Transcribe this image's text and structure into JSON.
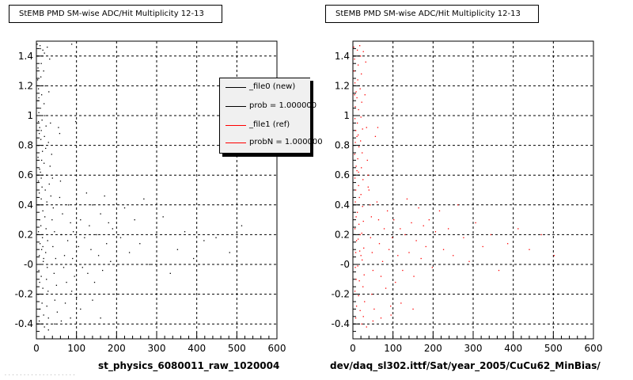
{
  "panels": [
    {
      "title": "StEMB PMD SM-wise ADC/Hit Multiplicity 12-13",
      "x_footer": "st_physics_6080011_raw_1020004",
      "color": "#000000"
    },
    {
      "title": "StEMB PMD SM-wise ADC/Hit Multiplicity 12-13",
      "x_footer": "dev/daq_sl302.ittf/Sat/year_2005/CuCu62_MinBias/",
      "color": "#ff0000"
    }
  ],
  "legend": {
    "entries": [
      {
        "label": "_file0 (new)",
        "color": "#000000"
      },
      {
        "label": "prob = 1.000000",
        "color": "#000000"
      },
      {
        "label": "_file1 (ref)",
        "color": "#ff0000"
      },
      {
        "label": "probN = 1.000000",
        "color": "#ff0000"
      }
    ]
  },
  "chart_data": [
    {
      "type": "scatter",
      "title": "StEMB PMD SM-wise ADC/Hit Multiplicity 12-13",
      "xlabel": "st_physics_6080011_raw_1020004",
      "ylabel": "",
      "xlim": [
        0,
        600
      ],
      "ylim": [
        -0.5,
        1.5
      ],
      "xticks": [
        "0",
        "100",
        "200",
        "300",
        "400",
        "500",
        "600"
      ],
      "yticks": [
        "-0.4",
        "-0.2",
        "-0",
        "0.2",
        "0.4",
        "0.6",
        "0.8",
        "1",
        "1.2",
        "1.4"
      ],
      "grid": true,
      "marker_color": "#000000",
      "points": [
        [
          2,
          1.48
        ],
        [
          3,
          1.4
        ],
        [
          4,
          1.32
        ],
        [
          3,
          1.24
        ],
        [
          5,
          1.18
        ],
        [
          4,
          1.1
        ],
        [
          6,
          1.02
        ],
        [
          5,
          0.96
        ],
        [
          7,
          0.88
        ],
        [
          6,
          0.8
        ],
        [
          4,
          0.72
        ],
        [
          8,
          0.64
        ],
        [
          5,
          0.56
        ],
        [
          7,
          0.48
        ],
        [
          6,
          0.4
        ],
        [
          8,
          0.3
        ],
        [
          5,
          0.22
        ],
        [
          9,
          0.14
        ],
        [
          7,
          0.06
        ],
        [
          6,
          -0.04
        ],
        [
          8,
          -0.12
        ],
        [
          5,
          -0.2
        ],
        [
          9,
          -0.3
        ],
        [
          7,
          -0.38
        ],
        [
          10,
          1.45
        ],
        [
          12,
          1.35
        ],
        [
          11,
          1.26
        ],
        [
          13,
          1.14
        ],
        [
          10,
          1.05
        ],
        [
          14,
          0.97
        ],
        [
          12,
          0.9
        ],
        [
          11,
          0.84
        ],
        [
          15,
          0.76
        ],
        [
          13,
          0.7
        ],
        [
          10,
          0.62
        ],
        [
          14,
          0.52
        ],
        [
          12,
          0.44
        ],
        [
          16,
          0.36
        ],
        [
          11,
          0.26
        ],
        [
          15,
          0.18
        ],
        [
          13,
          0.1
        ],
        [
          17,
          0.02
        ],
        [
          12,
          -0.08
        ],
        [
          16,
          -0.16
        ],
        [
          14,
          -0.26
        ],
        [
          18,
          -0.34
        ],
        [
          20,
          1.42
        ],
        [
          18,
          1.3
        ],
        [
          22,
          1.2
        ],
        [
          19,
          1.08
        ],
        [
          21,
          1.0
        ],
        [
          24,
          0.93
        ],
        [
          20,
          0.86
        ],
        [
          23,
          0.78
        ],
        [
          19,
          0.68
        ],
        [
          25,
          0.6
        ],
        [
          22,
          0.5
        ],
        [
          26,
          0.42
        ],
        [
          21,
          0.32
        ],
        [
          24,
          0.24
        ],
        [
          28,
          0.16
        ],
        [
          23,
          0.08
        ],
        [
          27,
          -0.02
        ],
        [
          25,
          -0.1
        ],
        [
          29,
          -0.18
        ],
        [
          26,
          -0.28
        ],
        [
          30,
          -0.36
        ],
        [
          9,
          1.47
        ],
        [
          16,
          1.44
        ],
        [
          27,
          1.46
        ],
        [
          33,
          1.38
        ],
        [
          31,
          1.16
        ],
        [
          35,
          0.95
        ],
        [
          30,
          0.82
        ],
        [
          38,
          0.74
        ],
        [
          34,
          0.66
        ],
        [
          40,
          0.58
        ],
        [
          36,
          0.46
        ],
        [
          42,
          0.38
        ],
        [
          39,
          0.3
        ],
        [
          45,
          0.22
        ],
        [
          41,
          0.12
        ],
        [
          48,
          0.04
        ],
        [
          44,
          -0.06
        ],
        [
          50,
          -0.14
        ],
        [
          46,
          -0.24
        ],
        [
          52,
          -0.32
        ],
        [
          55,
          0.92
        ],
        [
          60,
          0.56
        ],
        [
          58,
          0.45
        ],
        [
          65,
          0.34
        ],
        [
          62,
          0.2
        ],
        [
          70,
          0.06
        ],
        [
          68,
          -0.02
        ],
        [
          75,
          -0.12
        ],
        [
          72,
          -0.26
        ],
        [
          80,
          0.4
        ],
        [
          85,
          0.28
        ],
        [
          78,
          0.16
        ],
        [
          90,
          0.04
        ],
        [
          88,
          -0.18
        ],
        [
          95,
          -0.08
        ],
        [
          92,
          0.22
        ],
        [
          98,
          0.96
        ],
        [
          100,
          -0.22
        ],
        [
          105,
          0.12
        ],
        [
          110,
          0.3
        ],
        [
          115,
          -0.02
        ],
        [
          120,
          0.18
        ],
        [
          125,
          0.48
        ],
        [
          128,
          -0.06
        ],
        [
          132,
          0.26
        ],
        [
          136,
          0.1
        ],
        [
          140,
          0.4
        ],
        [
          145,
          -0.12
        ],
        [
          150,
          0.2
        ],
        [
          155,
          0.06
        ],
        [
          160,
          0.34
        ],
        [
          165,
          -0.04
        ],
        [
          170,
          0.46
        ],
        [
          175,
          0.14
        ],
        [
          180,
          0.28
        ],
        [
          185,
          0.02
        ],
        [
          190,
          0.24
        ],
        [
          200,
          -0.1
        ],
        [
          210,
          0.18
        ],
        [
          220,
          0.38
        ],
        [
          232,
          0.08
        ],
        [
          245,
          0.3
        ],
        [
          258,
          0.14
        ],
        [
          268,
          0.44
        ],
        [
          282,
          0.0
        ],
        [
          298,
          0.2
        ],
        [
          316,
          0.32
        ],
        [
          334,
          -0.06
        ],
        [
          352,
          0.1
        ],
        [
          370,
          0.22
        ],
        [
          392,
          0.04
        ],
        [
          418,
          0.16
        ],
        [
          448,
          0.18
        ],
        [
          482,
          0.08
        ],
        [
          512,
          0.26
        ],
        [
          6,
          1.12
        ],
        [
          8,
          0.92
        ],
        [
          12,
          0.58
        ],
        [
          16,
          0.12
        ],
        [
          20,
          -0.42
        ],
        [
          30,
          -0.44
        ],
        [
          45,
          -0.4
        ],
        [
          62,
          -0.38
        ],
        [
          85,
          -0.36
        ],
        [
          110,
          -0.3
        ],
        [
          140,
          -0.24
        ],
        [
          160,
          -0.36
        ],
        [
          88,
          1.48
        ],
        [
          58,
          0.88
        ],
        [
          32,
          0.54
        ],
        [
          18,
          0.04
        ]
      ]
    },
    {
      "type": "scatter",
      "title": "StEMB PMD SM-wise ADC/Hit Multiplicity 12-13",
      "xlabel": "dev/daq_sl302.ittf/Sat/year_2005/CuCu62_MinBias/",
      "ylabel": "",
      "xlim": [
        0,
        600
      ],
      "ylim": [
        -0.5,
        1.5
      ],
      "xticks": [
        "0",
        "100",
        "200",
        "300",
        "400",
        "500",
        "600"
      ],
      "yticks": [
        "-0.4",
        "-0.2",
        "-0",
        "0.2",
        "0.4",
        "0.6",
        "0.8",
        "1",
        "1.2",
        "1.4"
      ],
      "grid": true,
      "marker_color": "#ff0000",
      "points": [
        [
          2,
          1.46
        ],
        [
          4,
          1.38
        ],
        [
          3,
          1.3
        ],
        [
          5,
          1.22
        ],
        [
          4,
          1.14
        ],
        [
          6,
          1.06
        ],
        [
          5,
          0.98
        ],
        [
          7,
          0.9
        ],
        [
          6,
          0.82
        ],
        [
          4,
          0.74
        ],
        [
          8,
          0.66
        ],
        [
          5,
          0.58
        ],
        [
          7,
          0.5
        ],
        [
          6,
          0.42
        ],
        [
          8,
          0.32
        ],
        [
          5,
          0.24
        ],
        [
          9,
          0.16
        ],
        [
          7,
          0.08
        ],
        [
          6,
          -0.02
        ],
        [
          8,
          -0.1
        ],
        [
          5,
          -0.18
        ],
        [
          9,
          -0.28
        ],
        [
          7,
          -0.36
        ],
        [
          11,
          1.44
        ],
        [
          13,
          1.34
        ],
        [
          12,
          1.24
        ],
        [
          10,
          1.12
        ],
        [
          14,
          1.04
        ],
        [
          11,
          0.95
        ],
        [
          13,
          0.87
        ],
        [
          15,
          0.79
        ],
        [
          12,
          0.71
        ],
        [
          10,
          0.63
        ],
        [
          14,
          0.53
        ],
        [
          16,
          0.45
        ],
        [
          11,
          0.35
        ],
        [
          15,
          0.27
        ],
        [
          13,
          0.17
        ],
        [
          17,
          0.09
        ],
        [
          12,
          -0.01
        ],
        [
          16,
          -0.11
        ],
        [
          14,
          -0.21
        ],
        [
          18,
          -0.31
        ],
        [
          19,
          1.4
        ],
        [
          21,
          1.28
        ],
        [
          18,
          1.18
        ],
        [
          22,
          1.09
        ],
        [
          20,
          0.99
        ],
        [
          24,
          0.91
        ],
        [
          19,
          0.83
        ],
        [
          23,
          0.75
        ],
        [
          21,
          0.65
        ],
        [
          25,
          0.57
        ],
        [
          20,
          0.47
        ],
        [
          24,
          0.39
        ],
        [
          26,
          0.29
        ],
        [
          22,
          0.21
        ],
        [
          27,
          0.11
        ],
        [
          23,
          0.03
        ],
        [
          28,
          -0.07
        ],
        [
          25,
          -0.15
        ],
        [
          29,
          -0.25
        ],
        [
          26,
          -0.35
        ],
        [
          17,
          1.47
        ],
        [
          26,
          1.43
        ],
        [
          32,
          1.36
        ],
        [
          30,
          1.14
        ],
        [
          34,
          0.92
        ],
        [
          36,
          0.7
        ],
        [
          38,
          0.6
        ],
        [
          40,
          0.5
        ],
        [
          43,
          0.4
        ],
        [
          46,
          0.32
        ],
        [
          44,
          0.18
        ],
        [
          48,
          0.08
        ],
        [
          50,
          -0.04
        ],
        [
          47,
          -0.2
        ],
        [
          53,
          -0.3
        ],
        [
          56,
          0.86
        ],
        [
          60,
          0.42
        ],
        [
          64,
          0.3
        ],
        [
          66,
          0.14
        ],
        [
          70,
          -0.08
        ],
        [
          74,
          0.02
        ],
        [
          78,
          0.24
        ],
        [
          82,
          -0.16
        ],
        [
          86,
          0.36
        ],
        [
          90,
          0.1
        ],
        [
          94,
          -0.28
        ],
        [
          98,
          0.18
        ],
        [
          102,
          0.3
        ],
        [
          106,
          -0.12
        ],
        [
          112,
          0.06
        ],
        [
          118,
          0.24
        ],
        [
          124,
          -0.04
        ],
        [
          130,
          0.2
        ],
        [
          135,
          0.44
        ],
        [
          140,
          0.08
        ],
        [
          146,
          0.28
        ],
        [
          152,
          -0.08
        ],
        [
          158,
          0.16
        ],
        [
          164,
          0.38
        ],
        [
          170,
          0.04
        ],
        [
          176,
          0.26
        ],
        [
          182,
          0.12
        ],
        [
          190,
          0.3
        ],
        [
          198,
          -0.02
        ],
        [
          206,
          0.22
        ],
        [
          216,
          0.36
        ],
        [
          226,
          0.1
        ],
        [
          238,
          0.24
        ],
        [
          250,
          0.06
        ],
        [
          262,
          0.4
        ],
        [
          276,
          0.18
        ],
        [
          290,
          0.02
        ],
        [
          306,
          0.28
        ],
        [
          324,
          0.12
        ],
        [
          344,
          0.2
        ],
        [
          364,
          -0.04
        ],
        [
          386,
          0.14
        ],
        [
          412,
          0.24
        ],
        [
          440,
          0.1
        ],
        [
          470,
          0.2
        ],
        [
          502,
          0.06
        ],
        [
          8,
          1.16
        ],
        [
          10,
          0.86
        ],
        [
          14,
          0.62
        ],
        [
          18,
          0.2
        ],
        [
          22,
          -0.4
        ],
        [
          34,
          -0.42
        ],
        [
          50,
          -0.38
        ],
        [
          70,
          -0.36
        ],
        [
          95,
          -0.34
        ],
        [
          120,
          -0.26
        ],
        [
          150,
          -0.3
        ],
        [
          62,
          0.92
        ],
        [
          38,
          0.52
        ],
        [
          20,
          0.06
        ]
      ]
    }
  ]
}
